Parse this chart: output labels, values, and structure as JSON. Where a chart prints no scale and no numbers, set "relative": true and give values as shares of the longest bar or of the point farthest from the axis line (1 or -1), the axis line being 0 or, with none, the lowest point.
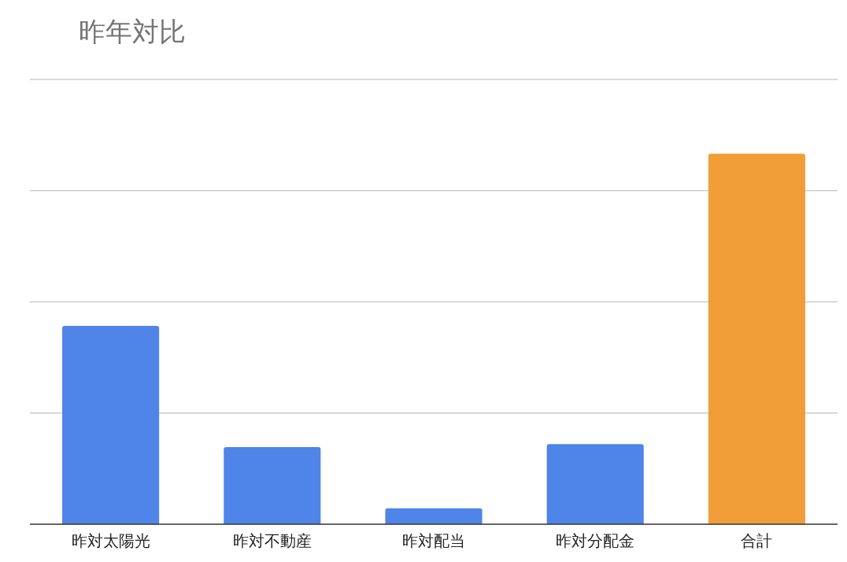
{
  "chart_data": {
    "type": "bar",
    "title": "昨年対比",
    "categories": [
      "昨対太陽光",
      "昨対不動産",
      "昨対配当",
      "昨対分配金",
      "合計"
    ],
    "values": [
      0.535,
      0.208,
      0.043,
      0.216,
      1
    ],
    "colors": [
      "#4f84e8",
      "#4f84e8",
      "#4f84e8",
      "#4f84e8",
      "#f19e38"
    ],
    "relative": true,
    "grid": "y",
    "legend": false
  }
}
